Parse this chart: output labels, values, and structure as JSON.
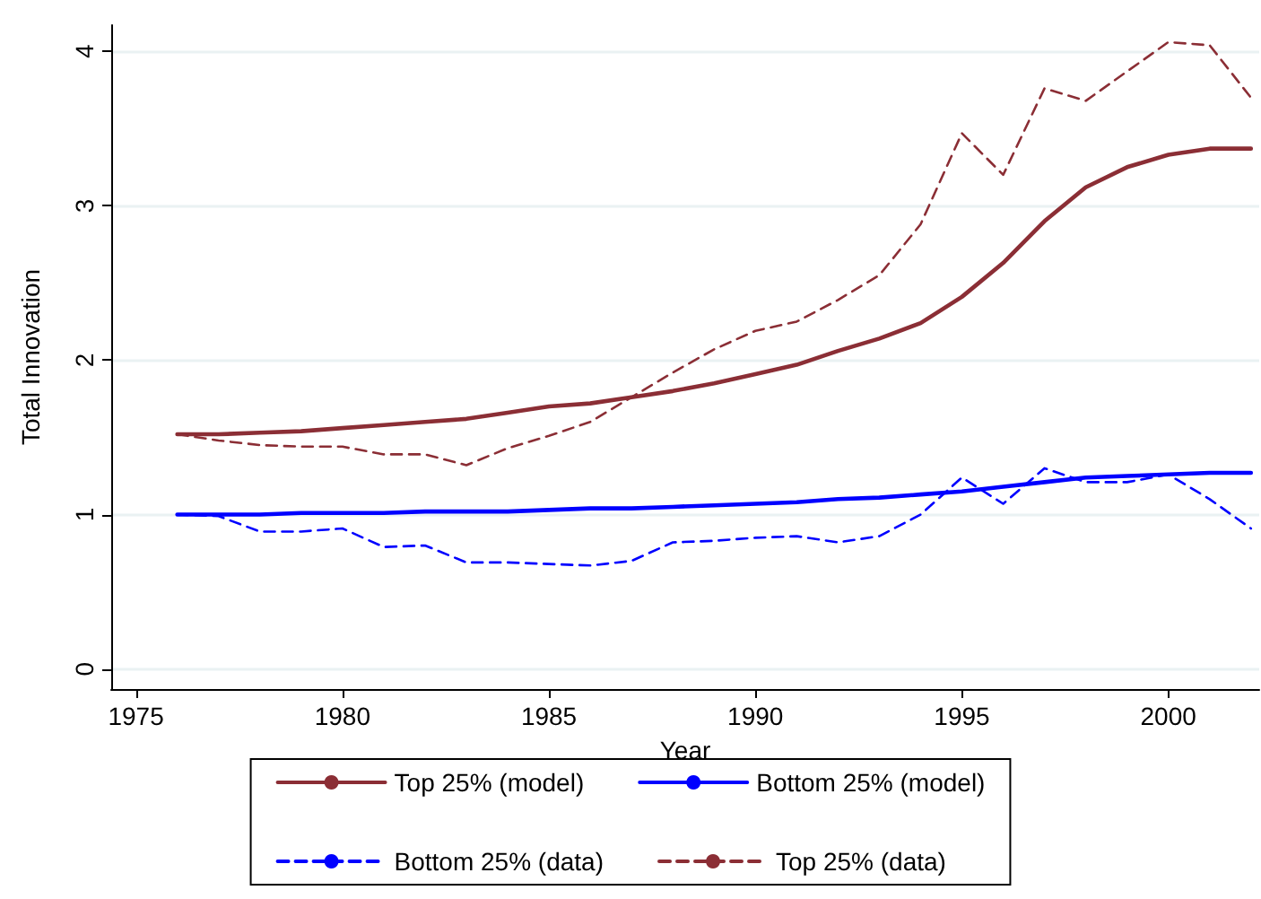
{
  "chart_data": {
    "type": "line",
    "xlabel": "Year",
    "ylabel": "Total Innovation",
    "x": [
      1976,
      1977,
      1978,
      1979,
      1980,
      1981,
      1982,
      1983,
      1984,
      1985,
      1986,
      1987,
      1988,
      1989,
      1990,
      1991,
      1992,
      1993,
      1994,
      1995,
      1996,
      1997,
      1998,
      1999,
      2000,
      2001,
      2002
    ],
    "series": [
      {
        "name": "Top 25% (model)",
        "color": "#8b2e35",
        "line_style": "solid",
        "values": [
          1.52,
          1.52,
          1.53,
          1.54,
          1.56,
          1.58,
          1.6,
          1.62,
          1.66,
          1.7,
          1.72,
          1.76,
          1.8,
          1.85,
          1.91,
          1.97,
          2.06,
          2.14,
          2.24,
          2.41,
          2.63,
          2.9,
          3.12,
          3.25,
          3.33,
          3.37,
          3.37
        ]
      },
      {
        "name": "Bottom 25% (model)",
        "color": "#0000ff",
        "line_style": "solid",
        "values": [
          1.0,
          1.0,
          1.0,
          1.01,
          1.01,
          1.01,
          1.02,
          1.02,
          1.02,
          1.03,
          1.04,
          1.04,
          1.05,
          1.06,
          1.07,
          1.08,
          1.1,
          1.11,
          1.13,
          1.15,
          1.18,
          1.21,
          1.24,
          1.25,
          1.26,
          1.27,
          1.27
        ]
      },
      {
        "name": "Bottom 25% (data)",
        "color": "#0000ff",
        "line_style": "dashed",
        "values": [
          1.0,
          0.99,
          0.89,
          0.89,
          0.91,
          0.79,
          0.8,
          0.69,
          0.69,
          0.68,
          0.67,
          0.7,
          0.82,
          0.83,
          0.85,
          0.86,
          0.82,
          0.86,
          1.0,
          1.24,
          1.07,
          1.3,
          1.21,
          1.21,
          1.26,
          1.1,
          0.91
        ]
      },
      {
        "name": "Top 25% (data)",
        "color": "#8b2e35",
        "line_style": "dashed",
        "values": [
          1.52,
          1.48,
          1.45,
          1.44,
          1.44,
          1.39,
          1.39,
          1.32,
          1.43,
          1.51,
          1.6,
          1.76,
          1.92,
          2.07,
          2.19,
          2.25,
          2.39,
          2.55,
          2.88,
          3.47,
          3.2,
          3.76,
          3.68,
          3.87,
          4.06,
          4.04,
          3.7
        ]
      }
    ],
    "xlim": [
      1974.4,
      2002.2
    ],
    "xticks": [
      1975,
      1980,
      1985,
      1990,
      1995,
      2000
    ],
    "ylim": [
      -0.13,
      4.17
    ],
    "yticks": [
      0,
      1,
      2,
      3,
      4
    ],
    "grid": "y",
    "legend": "bottom",
    "marker": "none"
  }
}
